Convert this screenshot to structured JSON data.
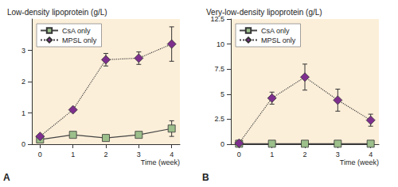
{
  "chart_data": [
    {
      "type": "line",
      "title": "Low-density lipoprotein (g/L)",
      "xlabel": "Time (week)",
      "annotations": [
        "A"
      ],
      "x": [
        0,
        1,
        2,
        3,
        4
      ],
      "xlim": [
        -0.25,
        4.25
      ],
      "xticks": [
        0,
        1,
        2,
        3,
        4
      ],
      "ylim": [
        0,
        4
      ],
      "yticks": [
        0,
        1,
        2,
        3
      ],
      "grid": false,
      "legend": "upper left",
      "series": [
        {
          "name": "CsA only",
          "color": "#9cbf8b",
          "marker": "square",
          "line_style": "solid",
          "values": [
            0.15,
            0.3,
            0.2,
            0.3,
            0.5
          ],
          "errors": [
            0.05,
            0.05,
            0.03,
            0.05,
            0.25
          ]
        },
        {
          "name": "MPSL only",
          "color": "#7e2f8e",
          "marker": "diamond",
          "line_style": "dotted",
          "values": [
            0.25,
            1.1,
            2.7,
            2.75,
            3.2
          ],
          "errors": [
            0.05,
            0.05,
            0.2,
            0.2,
            0.55
          ]
        }
      ]
    },
    {
      "type": "line",
      "title": "Very-low-density lipoprotein (g/L)",
      "xlabel": "Time (week)",
      "annotations": [
        "B"
      ],
      "x": [
        0,
        1,
        2,
        3,
        4
      ],
      "xlim": [
        -0.25,
        4.25
      ],
      "xticks": [
        0,
        1,
        2,
        3,
        4
      ],
      "ylim": [
        0,
        12.5
      ],
      "yticks": [
        0,
        2.5,
        5,
        7.5,
        10,
        12.5
      ],
      "grid": false,
      "legend": "upper left",
      "series": [
        {
          "name": "CsA only",
          "color": "#9cbf8b",
          "marker": "square",
          "line_style": "solid",
          "values": [
            0.05,
            0.05,
            0.05,
            0.05,
            0.05
          ],
          "errors": [
            0.02,
            0.02,
            0.02,
            0.02,
            0.02
          ]
        },
        {
          "name": "MPSL only",
          "color": "#7e2f8e",
          "marker": "diamond",
          "line_style": "dotted",
          "values": [
            0.1,
            4.6,
            6.7,
            4.4,
            2.4
          ],
          "errors": [
            0.05,
            0.6,
            1.3,
            1.1,
            0.6
          ]
        }
      ]
    }
  ]
}
